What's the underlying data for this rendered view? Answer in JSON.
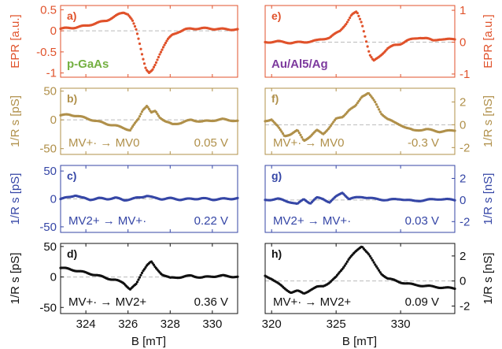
{
  "figure": {
    "colors": {
      "epr": "#e0522b",
      "b_f": "#b0904a",
      "c_g": "#3546a6",
      "d_h": "#111111",
      "gaas": "#74b041",
      "metal": "#7d3a9e",
      "zero_line": "#bbbbbb",
      "axis": "#222222"
    },
    "xlabel_left": "B [mT]",
    "xlabel_right": "B [mT]",
    "xticks_left": [
      "324",
      "326",
      "328",
      "330"
    ],
    "xticks_right": [
      "320",
      "325",
      "330"
    ]
  },
  "chart_data": [
    {
      "id": "a",
      "type": "scatter",
      "panel_label": "a)",
      "material_label": "p-GaAs",
      "ylabel": "EPR [a.u.]",
      "ylabel_side": "left",
      "color": "#e0522b",
      "xlim": [
        322.8,
        331.2
      ],
      "ylim": [
        -1.1,
        0.6
      ],
      "yticks": [
        0.5,
        0,
        -0.5,
        -1
      ],
      "ytick_labels": [
        "0.5",
        "0",
        "-0.5",
        "-1"
      ],
      "series": [
        {
          "x": [
            322.8,
            323.5,
            324.0,
            324.5,
            325.0,
            325.3,
            325.6,
            325.8,
            326.0,
            326.2,
            326.4,
            326.55,
            326.7,
            326.85,
            327.0,
            327.15,
            327.3,
            327.5,
            327.7,
            327.9,
            328.1,
            328.4,
            328.7,
            329.0,
            329.5,
            330.0,
            330.5,
            331.2
          ],
          "y": [
            0.05,
            0.08,
            0.12,
            0.18,
            0.25,
            0.32,
            0.4,
            0.44,
            0.4,
            0.25,
            0.0,
            -0.3,
            -0.62,
            -0.9,
            -1.0,
            -0.95,
            -0.8,
            -0.55,
            -0.35,
            -0.2,
            -0.1,
            -0.02,
            0.03,
            0.05,
            0.06,
            0.05,
            0.04,
            0.03
          ]
        }
      ]
    },
    {
      "id": "e",
      "type": "scatter",
      "panel_label": "e)",
      "material_label": "Au/Al5/Ag",
      "ylabel": "EPR [a.u.]",
      "ylabel_side": "right",
      "color": "#e0522b",
      "xlim": [
        319.5,
        334.2
      ],
      "ylim": [
        -1.1,
        1.15
      ],
      "yticks": [
        1,
        0,
        -1
      ],
      "ytick_labels": [
        "1",
        "0",
        "-1"
      ],
      "series": [
        {
          "x": [
            319.5,
            320.5,
            321.5,
            322.5,
            323.5,
            324.5,
            325.3,
            325.8,
            326.2,
            326.6,
            327.0,
            327.3,
            327.6,
            327.9,
            328.2,
            328.6,
            329.0,
            329.5,
            330.0,
            330.5,
            331.0,
            331.5,
            332.0,
            332.5,
            333.0,
            333.5,
            334.2
          ],
          "y": [
            0.0,
            0.02,
            -0.02,
            0.0,
            0.05,
            0.15,
            0.35,
            0.6,
            0.85,
            0.95,
            0.6,
            0.1,
            -0.4,
            -0.6,
            -0.5,
            -0.35,
            -0.2,
            -0.1,
            -0.05,
            0.05,
            0.1,
            0.15,
            0.12,
            0.05,
            0.1,
            0.08,
            0.1
          ]
        }
      ]
    },
    {
      "id": "b",
      "type": "scatter",
      "panel_label": "b)",
      "annotation": "MV+· → MV0",
      "voltage": "0.05 V",
      "ylabel": "1/R s [pS]",
      "ylabel_side": "left",
      "color": "#b0904a",
      "xlim": [
        322.8,
        331.2
      ],
      "ylim": [
        -60,
        55
      ],
      "yticks": [
        50,
        0,
        -50
      ],
      "ytick_labels": [
        "50",
        "0",
        "-50"
      ],
      "series": [
        {
          "x": [
            322.8,
            323.2,
            323.6,
            324.0,
            324.5,
            325.0,
            325.4,
            325.8,
            326.1,
            326.3,
            326.5,
            326.7,
            326.9,
            327.1,
            327.3,
            327.5,
            327.8,
            328.1,
            328.5,
            329.0,
            329.5,
            330.0,
            330.5,
            331.2
          ],
          "y": [
            8,
            9,
            7,
            3,
            -2,
            -7,
            -10,
            -14,
            -18,
            -8,
            2,
            18,
            25,
            12,
            15,
            5,
            -3,
            -8,
            -5,
            0,
            -3,
            -1,
            1,
            -2
          ]
        }
      ]
    },
    {
      "id": "f",
      "type": "scatter",
      "panel_label": "f)",
      "annotation": "MV+· → MV0",
      "voltage": "-0.3 V",
      "ylabel": "1/R s [nS]",
      "ylabel_side": "right",
      "color": "#b0904a",
      "xlim": [
        319.5,
        334.2
      ],
      "ylim": [
        -2.6,
        3.2
      ],
      "yticks": [
        2,
        0,
        -2
      ],
      "ytick_labels": [
        "2",
        "0",
        "-2"
      ],
      "series": [
        {
          "x": [
            319.5,
            320.0,
            320.5,
            321.0,
            321.5,
            322.0,
            322.5,
            323.0,
            323.5,
            324.0,
            324.5,
            325.0,
            325.5,
            326.0,
            326.5,
            327.0,
            327.5,
            328.0,
            328.5,
            329.0,
            329.5,
            330.0,
            330.5,
            331.0,
            332.0,
            333.0,
            334.2
          ],
          "y": [
            0.3,
            0.5,
            -0.2,
            -1.0,
            -0.8,
            -0.5,
            -1.4,
            -1.0,
            -0.5,
            -0.8,
            -0.2,
            0.5,
            0.7,
            1.3,
            1.6,
            2.5,
            2.8,
            2.0,
            1.0,
            0.5,
            0.2,
            0.0,
            -0.3,
            -0.5,
            -0.4,
            -0.6,
            -0.5
          ]
        }
      ]
    },
    {
      "id": "c",
      "type": "scatter",
      "panel_label": "c)",
      "annotation": "MV2+ → MV+·",
      "voltage": "0.22 V",
      "ylabel": "1/R s [pS]",
      "ylabel_side": "left",
      "color": "#3546a6",
      "xlim": [
        322.8,
        331.2
      ],
      "ylim": [
        -60,
        60
      ],
      "yticks": [
        50,
        0,
        -50
      ],
      "ytick_labels": [
        "50",
        "0",
        "-50"
      ],
      "series": [
        {
          "x": [
            322.8,
            323.2,
            323.5,
            323.8,
            324.2,
            324.6,
            325.0,
            325.4,
            325.8,
            326.2,
            326.6,
            326.9,
            327.2,
            327.6,
            328.0,
            328.5,
            329.0,
            329.5,
            330.0,
            330.5,
            331.2
          ],
          "y": [
            0,
            3,
            7,
            2,
            -1,
            1,
            0,
            2,
            -2,
            0,
            3,
            6,
            2,
            0,
            1,
            -1,
            0,
            1,
            -1,
            0,
            1
          ]
        }
      ]
    },
    {
      "id": "g",
      "type": "scatter",
      "panel_label": "g)",
      "annotation": "MV2+ → MV+·",
      "voltage": "0.03 V",
      "ylabel": "1/R s [nS]",
      "ylabel_side": "right",
      "color": "#3546a6",
      "xlim": [
        319.5,
        334.2
      ],
      "ylim": [
        -3,
        3.2
      ],
      "yticks": [
        2,
        0,
        -2
      ],
      "ytick_labels": [
        "2",
        "0",
        "-2"
      ],
      "series": [
        {
          "x": [
            319.5,
            320.5,
            321.5,
            322.0,
            322.5,
            323.0,
            323.5,
            324.0,
            324.5,
            325.0,
            325.5,
            326.0,
            326.5,
            327.0,
            327.5,
            328.0,
            329.0,
            330.0,
            331.0,
            332.0,
            333.0,
            334.2
          ],
          "y": [
            0.0,
            0.1,
            -0.2,
            -0.4,
            0.1,
            -0.3,
            0.2,
            0.1,
            -0.2,
            0.3,
            0.7,
            0.1,
            0.2,
            0.3,
            0.2,
            0.1,
            0.0,
            0.1,
            -0.1,
            0.0,
            0.1,
            0.0
          ]
        }
      ]
    },
    {
      "id": "d",
      "type": "scatter",
      "panel_label": "d)",
      "annotation": "MV+· → MV2+",
      "voltage": "0.36 V",
      "ylabel": "1/R s [pS]",
      "ylabel_side": "left",
      "color": "#111111",
      "xlim": [
        322.8,
        331.2
      ],
      "ylim": [
        -60,
        55
      ],
      "yticks": [
        50,
        0,
        -50
      ],
      "ytick_labels": [
        "50",
        "0",
        "-50"
      ],
      "series": [
        {
          "x": [
            322.8,
            323.2,
            323.6,
            324.0,
            324.5,
            325.0,
            325.4,
            325.8,
            326.1,
            326.4,
            326.7,
            326.9,
            327.1,
            327.3,
            327.6,
            328.0,
            328.5,
            329.0,
            329.5,
            330.0,
            330.5,
            331.2
          ],
          "y": [
            15,
            13,
            10,
            7,
            3,
            -2,
            -5,
            -10,
            -20,
            -12,
            10,
            20,
            25,
            15,
            5,
            -2,
            0,
            2,
            -1,
            1,
            2,
            0
          ]
        }
      ]
    },
    {
      "id": "h",
      "type": "scatter",
      "panel_label": "h)",
      "annotation": "MV+· → MV2+",
      "voltage": "0.09 V",
      "ylabel": "1/R s [nS]",
      "ylabel_side": "right",
      "color": "#111111",
      "xlim": [
        319.5,
        334.2
      ],
      "ylim": [
        -2.6,
        3.0
      ],
      "yticks": [
        2,
        0,
        -2
      ],
      "ytick_labels": [
        "2",
        "0",
        "-2"
      ],
      "series": [
        {
          "x": [
            319.5,
            320.0,
            320.5,
            321.0,
            321.5,
            322.0,
            322.5,
            323.0,
            323.5,
            324.0,
            324.5,
            325.0,
            325.5,
            326.0,
            326.5,
            327.0,
            327.5,
            328.0,
            328.5,
            329.0,
            330.0,
            331.0,
            332.0,
            333.0,
            334.2
          ],
          "y": [
            0.4,
            0.2,
            -0.2,
            -0.6,
            -0.9,
            -0.8,
            -1.0,
            -0.7,
            -0.5,
            -0.4,
            -0.1,
            0.3,
            1.0,
            1.8,
            2.3,
            2.8,
            2.2,
            1.3,
            0.6,
            0.2,
            -0.1,
            -0.3,
            -0.4,
            -0.5,
            -0.6
          ]
        }
      ]
    }
  ]
}
